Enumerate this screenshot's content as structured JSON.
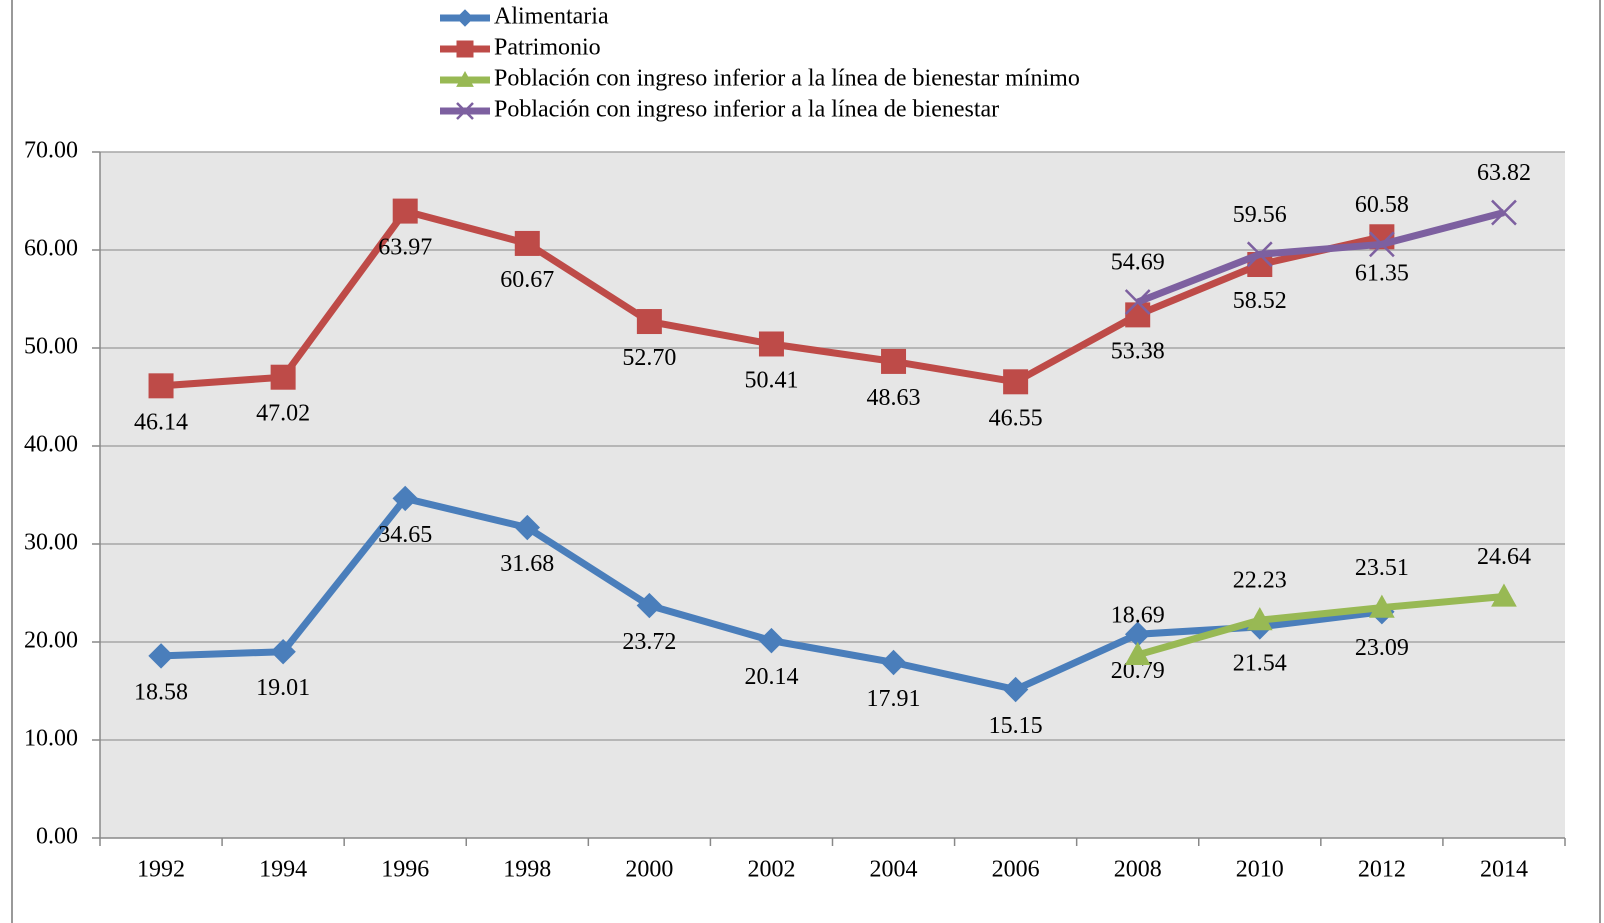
{
  "chart_data": {
    "type": "line",
    "categories": [
      "1992",
      "1994",
      "1996",
      "1998",
      "2000",
      "2002",
      "2004",
      "2006",
      "2008",
      "2010",
      "2012",
      "2014"
    ],
    "series": [
      {
        "name": "Alimentaria",
        "color": "#4a7ebb",
        "marker": "diamond",
        "values": [
          18.58,
          19.01,
          34.65,
          31.68,
          23.72,
          20.14,
          17.91,
          15.15,
          20.79,
          21.54,
          23.09,
          null
        ],
        "value_labels": [
          "18.58",
          "19.01",
          "34.65",
          "31.68",
          "23.72",
          "20.14",
          "17.91",
          "15.15",
          "20.79",
          "21.54",
          "23.09",
          null
        ]
      },
      {
        "name": "Patrimonio",
        "color": "#be4b48",
        "marker": "square",
        "values": [
          46.14,
          47.02,
          63.97,
          60.67,
          52.7,
          50.41,
          48.63,
          46.55,
          53.38,
          58.52,
          61.35,
          null
        ],
        "value_labels": [
          "46.14",
          "47.02",
          "63.97",
          "60.67",
          "52.70",
          "50.41",
          "48.63",
          "46.55",
          "53.38",
          "58.52",
          "61.35",
          null
        ]
      },
      {
        "name": "Población con ingreso inferior a la línea de bienestar mínimo",
        "color": "#98b954",
        "marker": "triangle",
        "values": [
          null,
          null,
          null,
          null,
          null,
          null,
          null,
          null,
          18.69,
          22.23,
          23.51,
          24.64
        ],
        "value_labels": [
          null,
          null,
          null,
          null,
          null,
          null,
          null,
          null,
          "18.69",
          "22.23",
          "23.51",
          "24.64"
        ]
      },
      {
        "name": "Población con ingreso inferior a la línea de bienestar",
        "color": "#7d60a0",
        "marker": "x",
        "values": [
          null,
          null,
          null,
          null,
          null,
          null,
          null,
          null,
          54.69,
          59.56,
          60.58,
          63.82
        ],
        "value_labels": [
          null,
          null,
          null,
          null,
          null,
          null,
          null,
          null,
          "54.69",
          "59.56",
          "60.58",
          "63.82"
        ]
      }
    ],
    "ylim": [
      0,
      70
    ],
    "yticks": [
      {
        "value": 0,
        "label": "0.00"
      },
      {
        "value": 10,
        "label": "10.00"
      },
      {
        "value": 20,
        "label": "20.00"
      },
      {
        "value": 30,
        "label": "30.00"
      },
      {
        "value": 40,
        "label": "40.00"
      },
      {
        "value": 50,
        "label": "50.00"
      },
      {
        "value": 60,
        "label": "60.00"
      },
      {
        "value": 70,
        "label": "70.00"
      }
    ],
    "grid": true,
    "legend": "top"
  }
}
